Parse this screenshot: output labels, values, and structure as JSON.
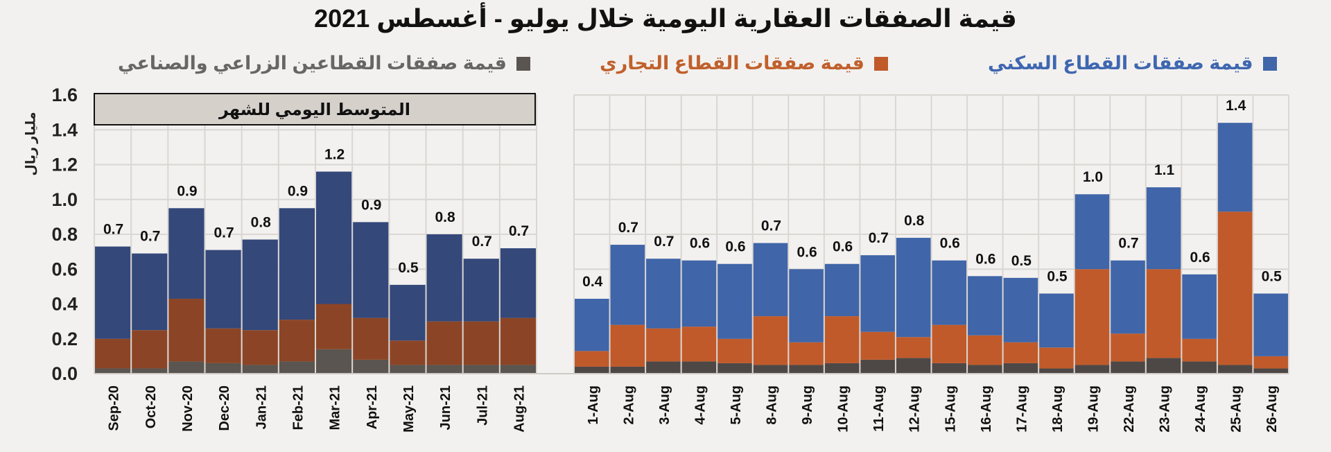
{
  "title": "قيمة الصفقات العقارية اليومية خلال يوليو - أغسطس 2021",
  "legend": [
    {
      "label": "قيمة صفقات القطاع السكني",
      "color": "#4065a8"
    },
    {
      "label": "قيمة صفقات القطاع التجاري",
      "color": "#c05a2a"
    },
    {
      "label": "قيمة صفقات القطاعين الزراعي والصناعي",
      "color": "#5a5550"
    }
  ],
  "chart_data": [
    {
      "type": "bar",
      "stacked": true,
      "annotation": "المتوسط اليومي للشهر",
      "ylabel": "مليار ريال",
      "ylim": [
        0,
        1.6
      ],
      "yticks": [
        "0.0",
        "0.2",
        "0.4",
        "0.6",
        "0.8",
        "1.0",
        "1.2",
        "1.4",
        "1.6"
      ],
      "grid": true,
      "categories": [
        "Sep-20",
        "Oct-20",
        "Nov-20",
        "Dec-20",
        "Jan-21",
        "Feb-21",
        "Mar-21",
        "Apr-21",
        "May-21",
        "Jun-21",
        "Jul-21",
        "Aug-21"
      ],
      "colors": {
        "residential": "#34487a",
        "commercial": "#8b4526",
        "agri_industrial": "#5a5550"
      },
      "series": [
        {
          "name": "قيمة صفقات القطاعين الزراعي والصناعي",
          "values": [
            0.03,
            0.03,
            0.07,
            0.06,
            0.05,
            0.07,
            0.14,
            0.08,
            0.05,
            0.05,
            0.05,
            0.05
          ]
        },
        {
          "name": "قيمة صفقات القطاع التجاري",
          "values": [
            0.17,
            0.22,
            0.36,
            0.2,
            0.2,
            0.24,
            0.26,
            0.24,
            0.14,
            0.25,
            0.25,
            0.27
          ]
        },
        {
          "name": "قيمة صفقات القطاع السكني",
          "values": [
            0.53,
            0.44,
            0.52,
            0.45,
            0.52,
            0.64,
            0.76,
            0.55,
            0.32,
            0.5,
            0.36,
            0.4
          ]
        }
      ],
      "data_labels": [
        "0.7",
        "0.7",
        "0.9",
        "0.7",
        "0.8",
        "0.9",
        "1.2",
        "0.9",
        "0.5",
        "0.8",
        "0.7",
        "0.7"
      ]
    },
    {
      "type": "bar",
      "stacked": true,
      "ylim": [
        0,
        1.6
      ],
      "grid": true,
      "categories": [
        "1-Aug",
        "2-Aug",
        "3-Aug",
        "4-Aug",
        "5-Aug",
        "8-Aug",
        "9-Aug",
        "10-Aug",
        "11-Aug",
        "12-Aug",
        "15-Aug",
        "16-Aug",
        "17-Aug",
        "18-Aug",
        "19-Aug",
        "22-Aug",
        "23-Aug",
        "24-Aug",
        "25-Aug",
        "26-Aug"
      ],
      "colors": {
        "residential": "#4065a8",
        "commercial": "#c05a2a",
        "agri_industrial": "#4d4846"
      },
      "series": [
        {
          "name": "قيمة صفقات القطاعين الزراعي والصناعي",
          "values": [
            0.04,
            0.04,
            0.07,
            0.07,
            0.06,
            0.05,
            0.05,
            0.06,
            0.08,
            0.09,
            0.06,
            0.05,
            0.06,
            0.03,
            0.05,
            0.07,
            0.09,
            0.07,
            0.05,
            0.03
          ]
        },
        {
          "name": "قيمة صفقات القطاع التجاري",
          "values": [
            0.09,
            0.24,
            0.19,
            0.2,
            0.14,
            0.28,
            0.13,
            0.27,
            0.16,
            0.12,
            0.22,
            0.17,
            0.12,
            0.12,
            0.55,
            0.16,
            0.51,
            0.13,
            0.88,
            0.07
          ]
        },
        {
          "name": "قيمة صفقات القطاع السكني",
          "values": [
            0.3,
            0.46,
            0.4,
            0.38,
            0.43,
            0.42,
            0.42,
            0.3,
            0.44,
            0.57,
            0.37,
            0.34,
            0.37,
            0.31,
            0.43,
            0.42,
            0.47,
            0.37,
            0.51,
            0.36
          ]
        }
      ],
      "data_labels": [
        "0.4",
        "0.7",
        "0.7",
        "0.6",
        "0.6",
        "0.7",
        "0.6",
        "0.6",
        "0.7",
        "0.8",
        "0.6",
        "0.6",
        "0.5",
        "0.5",
        "1.0",
        "0.7",
        "1.1",
        "0.6",
        "1.4",
        "0.5"
      ]
    }
  ]
}
